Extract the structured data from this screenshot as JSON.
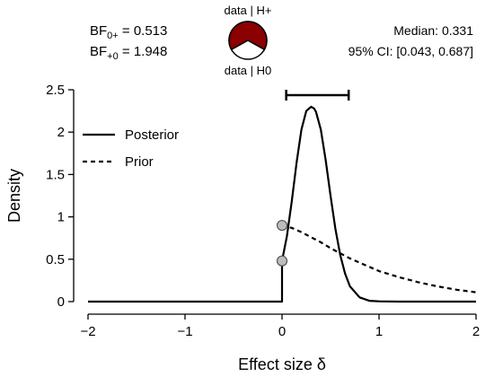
{
  "header": {
    "bf_0plus_label": "BF",
    "bf_0plus_sub": "0+",
    "bf_0plus_value": " = 0.513",
    "bf_plus0_label": "BF",
    "bf_plus0_sub": "+0",
    "bf_plus0_value": " = 1.948",
    "pie_top_label": "data | H+",
    "pie_bottom_label": "data | H0",
    "median_text": "Median: 0.331",
    "ci_text": "95% CI: [0.043, 0.687]"
  },
  "colors": {
    "pie_h1": "#8b0000",
    "pie_h0": "#ffffff",
    "point_fill": "#bdbdbd",
    "line": "#000000"
  },
  "chart_data": {
    "type": "line",
    "xlabel": "Effect size δ",
    "ylabel": "Density",
    "xlim": [
      -2,
      2
    ],
    "ylim": [
      0,
      2.5
    ],
    "x_ticks": [
      -2,
      -1,
      0,
      1,
      2
    ],
    "x_tick_labels": [
      "−2",
      "−1",
      "0",
      "1",
      "2"
    ],
    "y_ticks": [
      0,
      0.5,
      1,
      1.5,
      2,
      2.5
    ],
    "y_tick_labels": [
      "0",
      "0.5",
      "1",
      "1.5",
      "2",
      "2.5"
    ],
    "legend_position": "top-left",
    "series": [
      {
        "name": "Posterior",
        "style": "solid",
        "x": [
          -2,
          0,
          0,
          0.05,
          0.1,
          0.15,
          0.2,
          0.25,
          0.3,
          0.33,
          0.35,
          0.4,
          0.45,
          0.5,
          0.55,
          0.6,
          0.65,
          0.7,
          0.8,
          0.9,
          1.0,
          1.2,
          1.5,
          2
        ],
        "y": [
          0,
          0,
          0.48,
          0.77,
          1.18,
          1.64,
          2.03,
          2.25,
          2.3,
          2.28,
          2.24,
          2.03,
          1.67,
          1.25,
          0.86,
          0.55,
          0.33,
          0.18,
          0.05,
          0.01,
          0.003,
          0.0,
          0.0,
          0.0
        ]
      },
      {
        "name": "Prior",
        "style": "dashed",
        "x": [
          0,
          0.1,
          0.2,
          0.3,
          0.4,
          0.5,
          0.6,
          0.7,
          0.8,
          0.9,
          1.0,
          1.2,
          1.4,
          1.6,
          1.8,
          2.0
        ],
        "y": [
          0.9,
          0.87,
          0.82,
          0.76,
          0.7,
          0.63,
          0.57,
          0.51,
          0.46,
          0.41,
          0.36,
          0.29,
          0.23,
          0.18,
          0.14,
          0.11
        ]
      }
    ],
    "points": [
      {
        "x": 0,
        "y": 0.9
      },
      {
        "x": 0,
        "y": 0.48
      }
    ],
    "credible_interval": {
      "lower": 0.043,
      "upper": 0.687,
      "level": 2.5
    },
    "pie": {
      "h1_fraction": 0.661,
      "h0_fraction": 0.339
    }
  }
}
